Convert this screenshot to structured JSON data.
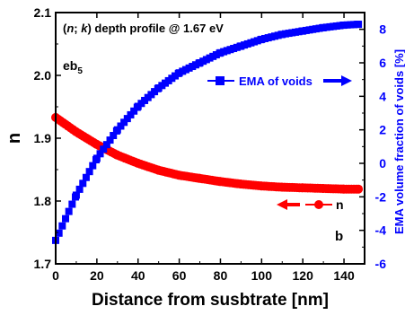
{
  "chart_data": {
    "type": "scatter",
    "title": "",
    "annotations": {
      "profile_prefix": "(",
      "profile_n": "n",
      "profile_sep": "; ",
      "profile_k": "k",
      "profile_rest": ") depth profile @ 1.67 eV",
      "sample": "eb",
      "sample_sub": "5",
      "panel": "b"
    },
    "xlabel": "Distance from susbtrate [nm]",
    "ylabel": "n",
    "y2label": "EMA volume fraction of voids [%]",
    "xlim": [
      0,
      150
    ],
    "ylim": [
      1.7,
      2.1
    ],
    "y2lim": [
      -6,
      9
    ],
    "xticks": [
      0,
      20,
      40,
      60,
      80,
      100,
      120,
      140
    ],
    "yticks": [
      1.7,
      1.8,
      1.9,
      2.0,
      2.1
    ],
    "y2ticks": [
      -6,
      -4,
      -2,
      0,
      2,
      4,
      6,
      8
    ],
    "xtick_labels": [
      "0",
      "20",
      "40",
      "60",
      "80",
      "100",
      "120",
      "140"
    ],
    "ytick_labels": [
      "1.7",
      "1.8",
      "1.9",
      "2.0",
      "2.1"
    ],
    "y2tick_labels": [
      "-6",
      "-4",
      "-2",
      "0",
      "2",
      "4",
      "6",
      "8"
    ],
    "grid": false,
    "series": [
      {
        "name": "n",
        "axis": "left",
        "color": "#ff0000",
        "marker": "circle",
        "x": [
          0,
          10,
          20,
          30,
          40,
          50,
          60,
          70,
          80,
          90,
          100,
          110,
          120,
          130,
          140,
          147
        ],
        "values": [
          1.933,
          1.91,
          1.89,
          1.873,
          1.86,
          1.849,
          1.841,
          1.836,
          1.831,
          1.827,
          1.824,
          1.822,
          1.821,
          1.82,
          1.819,
          1.819
        ]
      },
      {
        "name": "EMA of voids",
        "axis": "right",
        "color": "#0000ff",
        "marker": "square",
        "x": [
          0,
          10,
          20,
          30,
          40,
          50,
          60,
          70,
          80,
          90,
          100,
          110,
          120,
          130,
          140,
          147
        ],
        "values": [
          -4.6,
          -1.9,
          0.3,
          2.0,
          3.4,
          4.5,
          5.4,
          6.0,
          6.6,
          7.0,
          7.4,
          7.7,
          7.9,
          8.1,
          8.25,
          8.3
        ]
      }
    ],
    "legend": [
      {
        "series": "EMA of voids",
        "arrow": "right",
        "position": "upper-right"
      },
      {
        "series": "n",
        "arrow": "left",
        "position": "lower-right"
      }
    ]
  }
}
